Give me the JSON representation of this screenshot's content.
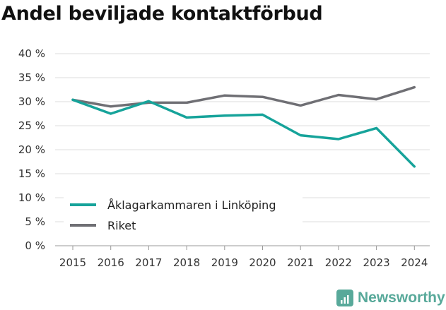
{
  "header": {
    "title": "Andel beviljade kontaktförbud"
  },
  "brand": {
    "name": "Newsworthy"
  },
  "colors": {
    "series_0": "#16a39a",
    "series_1": "#6f6f74",
    "grid": "#dddddd",
    "brand": "#58a99a"
  },
  "chart_data": {
    "type": "line",
    "title": "Andel beviljade kontaktförbud",
    "xlabel": "",
    "ylabel": "",
    "x": [
      "2015",
      "2016",
      "2017",
      "2018",
      "2019",
      "2020",
      "2021",
      "2022",
      "2023",
      "2024"
    ],
    "ylim": [
      0,
      40
    ],
    "yticks": [
      "0 %",
      "5 %",
      "10 %",
      "15 %",
      "20 %",
      "25 %",
      "30 %",
      "35 %",
      "40 %"
    ],
    "legend_position": "bottom-left",
    "grid": true,
    "series": [
      {
        "name": "Åklagarkammaren i Linköping",
        "values": [
          30.4,
          27.5,
          30.1,
          26.7,
          27.1,
          27.3,
          23.0,
          22.2,
          24.5,
          16.5
        ]
      },
      {
        "name": "Riket",
        "values": [
          30.4,
          29.0,
          29.8,
          29.8,
          31.3,
          31.0,
          29.2,
          31.4,
          30.5,
          33.0
        ]
      }
    ]
  }
}
